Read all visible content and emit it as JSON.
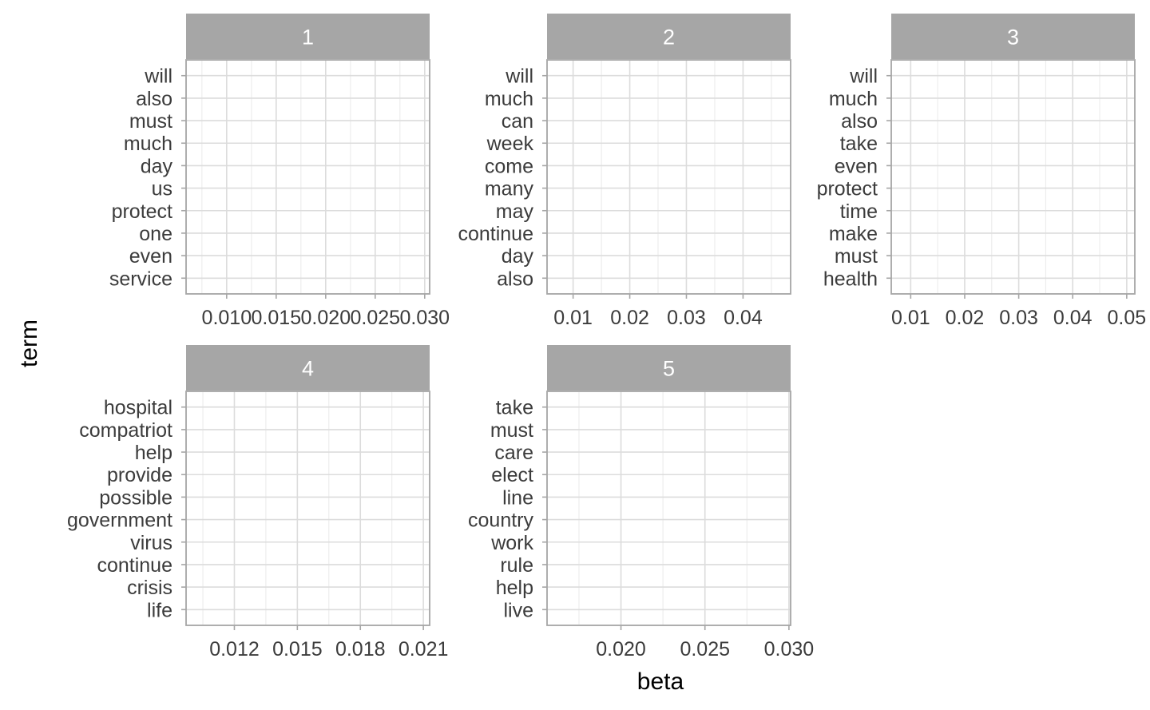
{
  "chart_data": {
    "type": "bar",
    "xlabel": "beta",
    "ylabel": "term",
    "colors": {
      "strip": "#a6a6a6",
      "strip_text": "#ffffff",
      "panel_border": "#a6a6a6",
      "grid_major": "#dcdcdc",
      "grid_minor": "#ededed",
      "axis_text": "#3c3c3c",
      "title_text": "#000000"
    },
    "panels": [
      {
        "label": "1",
        "terms": [
          "will",
          "also",
          "must",
          "much",
          "day",
          "us",
          "protect",
          "one",
          "even",
          "service"
        ],
        "xlim": [
          0.0059,
          0.0305
        ],
        "ticks": [
          0.01,
          0.015,
          0.02,
          0.025,
          0.03
        ],
        "tick_labels": [
          "0.010",
          "0.015",
          "0.020",
          "0.025",
          "0.030"
        ]
      },
      {
        "label": "2",
        "terms": [
          "will",
          "much",
          "can",
          "week",
          "come",
          "many",
          "may",
          "continue",
          "day",
          "also"
        ],
        "xlim": [
          0.0054,
          0.0484
        ],
        "ticks": [
          0.01,
          0.02,
          0.03,
          0.04
        ],
        "tick_labels": [
          "0.01",
          "0.02",
          "0.03",
          "0.04"
        ]
      },
      {
        "label": "3",
        "terms": [
          "will",
          "much",
          "also",
          "take",
          "even",
          "protect",
          "time",
          "make",
          "must",
          "health"
        ],
        "xlim": [
          0.0064,
          0.0515
        ],
        "ticks": [
          0.01,
          0.02,
          0.03,
          0.04,
          0.05
        ],
        "tick_labels": [
          "0.01",
          "0.02",
          "0.03",
          "0.04",
          "0.05"
        ]
      },
      {
        "label": "4",
        "terms": [
          "hospital",
          "compatriot",
          "help",
          "provide",
          "possible",
          "government",
          "virus",
          "continue",
          "crisis",
          "life"
        ],
        "xlim": [
          0.0097,
          0.0213
        ],
        "ticks": [
          0.012,
          0.015,
          0.018,
          0.021
        ],
        "tick_labels": [
          "0.012",
          "0.015",
          "0.018",
          "0.021"
        ]
      },
      {
        "label": "5",
        "terms": [
          "take",
          "must",
          "care",
          "elect",
          "line",
          "country",
          "work",
          "rule",
          "help",
          "live"
        ],
        "xlim": [
          0.0156,
          0.0301
        ],
        "ticks": [
          0.02,
          0.025,
          0.03
        ],
        "tick_labels": [
          "0.020",
          "0.025",
          "0.030"
        ]
      }
    ]
  }
}
